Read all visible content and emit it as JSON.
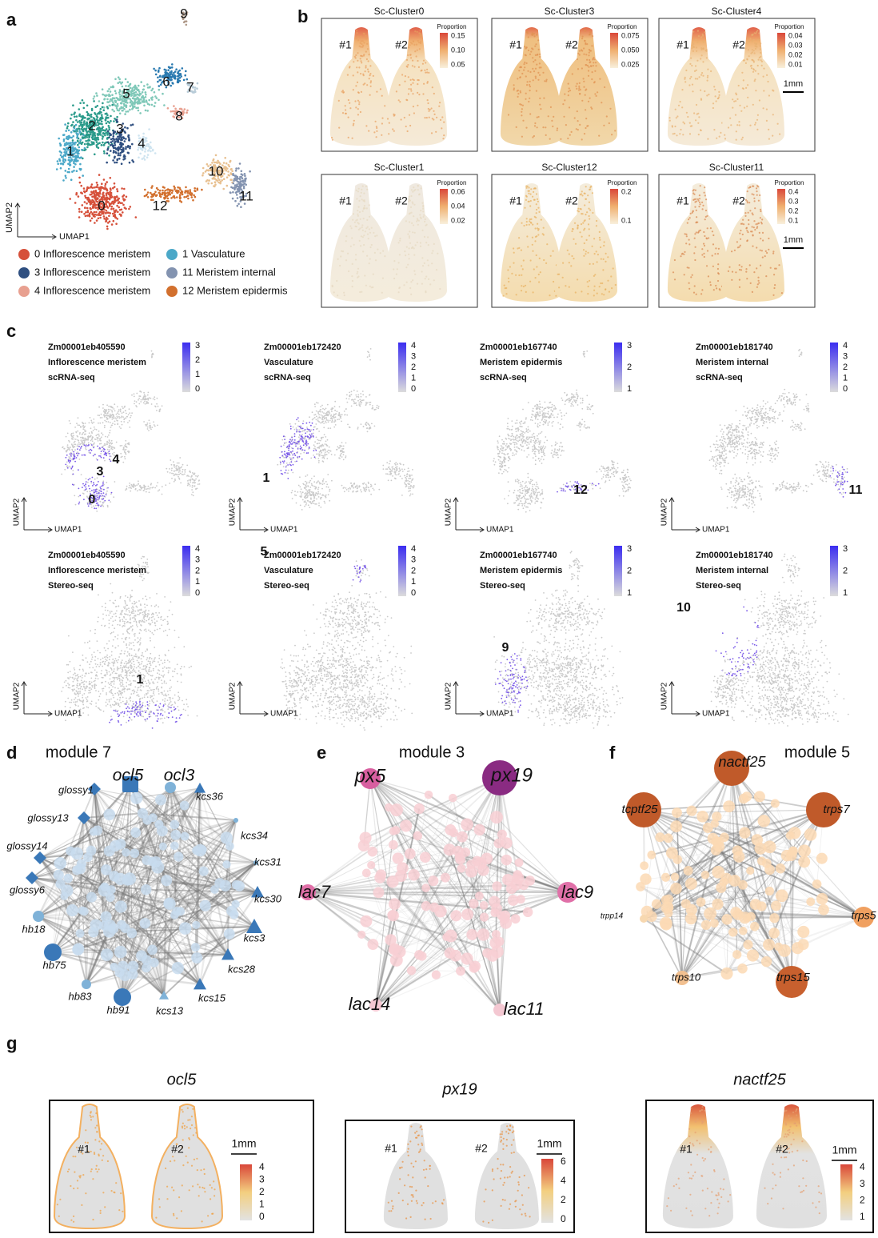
{
  "panel_a": {
    "letter": "a",
    "cluster_labels": [
      "9",
      "5",
      "6",
      "7",
      "2",
      "3",
      "8",
      "4",
      "1",
      "10",
      "12",
      "0",
      "11"
    ],
    "x_axis": "UMAP1",
    "y_axis": "UMAP2",
    "legend": [
      {
        "label": "0 Inflorescence meristem",
        "color": "#d6503a"
      },
      {
        "label": "1  Vasculature",
        "color": "#4ba8c8"
      },
      {
        "label": "3 Inflorescence meristem",
        "color": "#2f4f80"
      },
      {
        "label": "11 Meristem internal",
        "color": "#8393b0"
      },
      {
        "label": "4 Inflorescence meristem",
        "color": "#e8a090"
      },
      {
        "label": "12 Meristem epidermis",
        "color": "#d2702e"
      }
    ]
  },
  "panel_b": {
    "letter": "b",
    "maps": [
      {
        "title": "Sc-Cluster0",
        "legend_title": "Proportion",
        "ticks": [
          "0.15",
          "0.10",
          "0.05"
        ],
        "samples": [
          "#1",
          "#2"
        ]
      },
      {
        "title": "Sc-Cluster3",
        "legend_title": "Proportion",
        "ticks": [
          "0.075",
          "0.050",
          "0.025"
        ],
        "samples": [
          "#1",
          "#2"
        ]
      },
      {
        "title": "Sc-Cluster4",
        "legend_title": "Proportion",
        "ticks": [
          "0.04",
          "0.03",
          "0.02",
          "0.01"
        ],
        "samples": [
          "#1",
          "#2"
        ],
        "scale": "1mm"
      },
      {
        "title": "Sc-Cluster1",
        "legend_title": "Proportion",
        "ticks": [
          "0.06",
          "0.04",
          "0.02"
        ],
        "samples": [
          "#1",
          "#2"
        ]
      },
      {
        "title": "Sc-Cluster12",
        "legend_title": "Proportion",
        "ticks": [
          "0.2",
          "0.1"
        ],
        "samples": [
          "#1",
          "#2"
        ]
      },
      {
        "title": "Sc-Cluster11",
        "legend_title": "Proportion",
        "ticks": [
          "0.4",
          "0.3",
          "0.2",
          "0.1"
        ],
        "samples": [
          "#1",
          "#2"
        ],
        "scale": "1mm"
      }
    ]
  },
  "panel_c": {
    "letter": "c",
    "plots": [
      {
        "gene": "Zm00001eb405590",
        "cell_type": "Inflorescence meristem",
        "method": "scRNA-seq",
        "ticks": [
          "3",
          "2",
          "1",
          "0"
        ],
        "clusters": [
          "3",
          "4",
          "0"
        ],
        "x_axis": "UMAP1",
        "y_axis": "UMAP2"
      },
      {
        "gene": "Zm00001eb172420",
        "cell_type": "Vasculature",
        "method": "scRNA-seq",
        "ticks": [
          "4",
          "3",
          "2",
          "1",
          "0"
        ],
        "clusters": [
          "1"
        ],
        "x_axis": "UMAP1",
        "y_axis": "UMAP2"
      },
      {
        "gene": "Zm00001eb167740",
        "cell_type": "Meristem epidermis",
        "method": "scRNA-seq",
        "ticks": [
          "3",
          "2",
          "1"
        ],
        "clusters": [
          "12"
        ],
        "x_axis": "UMAP1",
        "y_axis": "UMAP2"
      },
      {
        "gene": "Zm00001eb181740",
        "cell_type": "Meristem internal",
        "method": "scRNA-seq",
        "ticks": [
          "4",
          "3",
          "2",
          "1",
          "0"
        ],
        "clusters": [
          "11"
        ],
        "x_axis": "UMAP1",
        "y_axis": "UMAP2"
      },
      {
        "gene": "Zm00001eb405590",
        "cell_type": "Inflorescence meristem",
        "method": "Stereo-seq",
        "ticks": [
          "4",
          "3",
          "2",
          "1",
          "0"
        ],
        "clusters": [
          "1"
        ],
        "x_axis": "UMAP1",
        "y_axis": "UMAP2"
      },
      {
        "gene": "Zm00001eb172420",
        "cell_type": "Vasculature",
        "method": "Stereo-seq",
        "ticks": [
          "4",
          "3",
          "2",
          "1",
          "0"
        ],
        "clusters": [
          "5"
        ],
        "x_axis": "UMAP1",
        "y_axis": "UMAP2"
      },
      {
        "gene": "Zm00001eb167740",
        "cell_type": "Meristem epidermis",
        "method": "Stereo-seq",
        "ticks": [
          "3",
          "2",
          "1"
        ],
        "clusters": [
          "9"
        ],
        "x_axis": "UMAP1",
        "y_axis": "UMAP2"
      },
      {
        "gene": "Zm00001eb181740",
        "cell_type": "Meristem internal",
        "method": "Stereo-seq",
        "ticks": [
          "3",
          "2",
          "1"
        ],
        "clusters": [
          "10"
        ],
        "x_axis": "UMAP1",
        "y_axis": "UMAP2"
      }
    ]
  },
  "panel_d": {
    "letter": "d",
    "title": "module 7",
    "nodes": [
      "ocl5",
      "ocl3",
      "glossy1",
      "glossy13",
      "glossy14",
      "glossy6",
      "hb18",
      "hb75",
      "hb83",
      "hb91",
      "kcs13",
      "kcs15",
      "kcs28",
      "kcs3",
      "kcs30",
      "kcs31",
      "kcs34",
      "kcs36"
    ]
  },
  "panel_e": {
    "letter": "e",
    "title": "module 3",
    "nodes": [
      "px5",
      "px19",
      "lac7",
      "lac9",
      "lac14",
      "lac11"
    ]
  },
  "panel_f": {
    "letter": "f",
    "title": "module 5",
    "nodes": [
      "nactf25",
      "tcptf25",
      "trps7",
      "trpp14",
      "trps5",
      "trps10",
      "trps15"
    ]
  },
  "panel_g": {
    "letter": "g",
    "maps": [
      {
        "title": "ocl5",
        "samples": [
          "#1",
          "#2"
        ],
        "scale": "1mm",
        "ticks": [
          "4",
          "3",
          "2",
          "1",
          "0"
        ]
      },
      {
        "title": "px19",
        "samples": [
          "#1",
          "#2"
        ],
        "scale": "1mm",
        "ticks": [
          "6",
          "4",
          "2",
          "0"
        ]
      },
      {
        "title": "nactf25",
        "samples": [
          "#1",
          "#2"
        ],
        "scale": "1mm",
        "ticks": [
          "4",
          "3",
          "2",
          "1"
        ]
      }
    ]
  }
}
